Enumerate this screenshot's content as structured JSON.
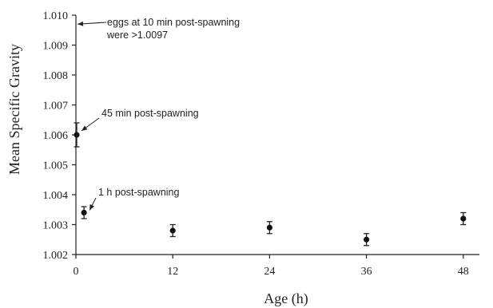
{
  "chart_data": {
    "type": "scatter",
    "xlabel": "Age (h)",
    "ylabel": "Mean Specific Gravity",
    "xlim": [
      0,
      50
    ],
    "ylim": [
      1.002,
      1.01
    ],
    "xticks": [
      0,
      12,
      24,
      36,
      48
    ],
    "yticks": [
      1.002,
      1.003,
      1.004,
      1.005,
      1.006,
      1.007,
      1.008,
      1.009,
      1.01
    ],
    "xtick_labels": [
      "0",
      "12",
      "24",
      "36",
      "48"
    ],
    "ytick_labels": [
      "1.002",
      "1.003",
      "1.004",
      "1.005",
      "1.006",
      "1.007",
      "1.008",
      "1.009",
      "1.010"
    ],
    "points": [
      {
        "x": 0.1,
        "y": 1.006,
        "yerr_low": 1.0056,
        "yerr_high": 1.0064
      },
      {
        "x": 1.0,
        "y": 1.0034,
        "yerr_low": 1.0032,
        "yerr_high": 1.0036
      },
      {
        "x": 12,
        "y": 1.0028,
        "yerr_low": 1.0026,
        "yerr_high": 1.003
      },
      {
        "x": 24,
        "y": 1.0029,
        "yerr_low": 1.0027,
        "yerr_high": 1.0031
      },
      {
        "x": 36,
        "y": 1.0025,
        "yerr_low": 1.0023,
        "yerr_high": 1.0027
      },
      {
        "x": 48,
        "y": 1.0032,
        "yerr_low": 1.003,
        "yerr_high": 1.0034
      }
    ],
    "annotations": [
      {
        "lines": [
          "eggs at 10 min post-spawning",
          "were >1.0097"
        ],
        "target_x": 0,
        "target_y": 1.0097
      },
      {
        "lines": [
          "45 min post-spawning"
        ],
        "target_x": 0.1,
        "target_y": 1.006
      },
      {
        "lines": [
          "1 h post-spawning"
        ],
        "target_x": 1.0,
        "target_y": 1.0034
      }
    ],
    "grid": false,
    "legend": "none"
  }
}
